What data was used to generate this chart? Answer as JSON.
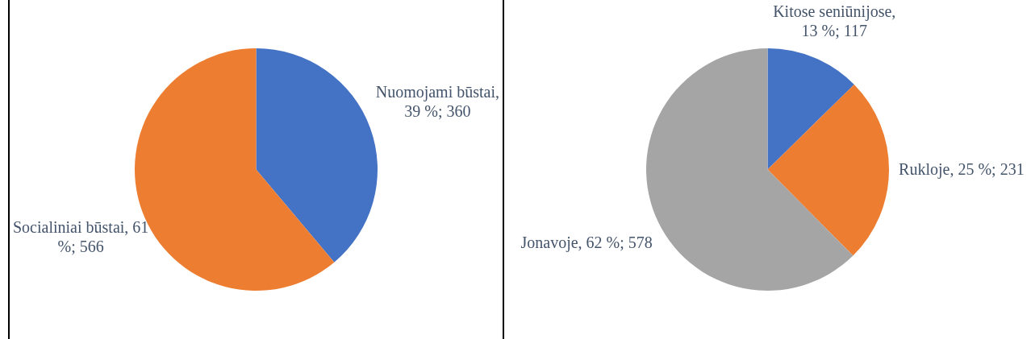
{
  "chart_data": [
    {
      "type": "pie",
      "categories": [
        "Nuomojami būstai, 39 %; 360",
        "Socialiniai būstai, 61 %; 566"
      ],
      "values": [
        360,
        566
      ],
      "colors": [
        "#4472c4",
        "#ed7d31"
      ]
    },
    {
      "type": "pie",
      "categories": [
        "Kitose seniūnijose, 13 %; 117",
        "Rukloje, 25 %; 231",
        "Jonavoje, 62 %; 578"
      ],
      "values": [
        117,
        231,
        578
      ],
      "colors": [
        "#4472c4",
        "#ed7d31",
        "#a5a5a5"
      ]
    }
  ]
}
